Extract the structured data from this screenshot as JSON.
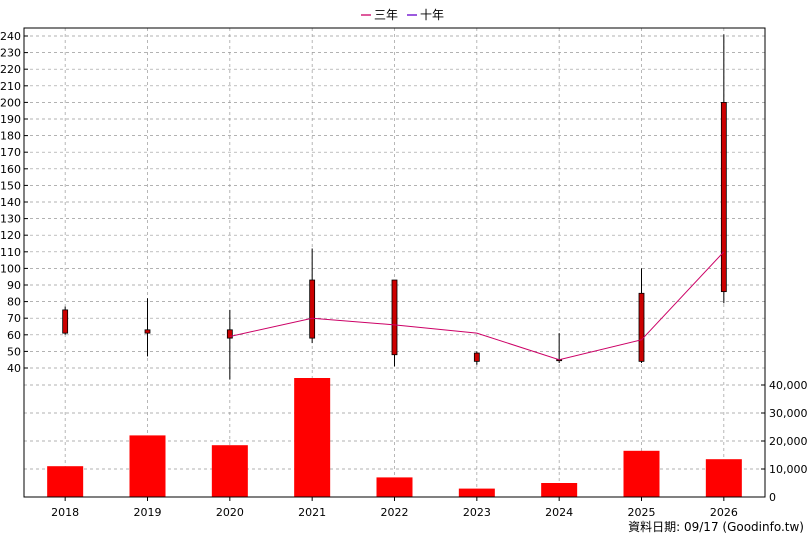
{
  "chart_data": {
    "type": "candlestick+line+bar",
    "categories": [
      "2018",
      "2019",
      "2020",
      "2021",
      "2022",
      "2023",
      "2024",
      "2025",
      "2026"
    ],
    "legend": [
      {
        "name": "三年",
        "color": "#cc0066"
      },
      {
        "name": "十年",
        "color": "#6600cc"
      }
    ],
    "price_axis": {
      "min": 40,
      "max": 240,
      "step": 10
    },
    "volume_axis": {
      "min": 0,
      "max": 40000,
      "step": 10000,
      "labels": [
        "0",
        "10,000",
        "20,000",
        "30,000",
        "40,000"
      ]
    },
    "candles": [
      {
        "year": "2018",
        "open": 61,
        "close": 75,
        "high": 77,
        "low": 60
      },
      {
        "year": "2019",
        "open": 61,
        "close": 63,
        "high": 82,
        "low": 47
      },
      {
        "year": "2020",
        "open": 58,
        "close": 63,
        "high": 75,
        "low": 33
      },
      {
        "year": "2021",
        "open": 58,
        "close": 93,
        "high": 112,
        "low": 55
      },
      {
        "year": "2022",
        "open": 48,
        "close": 93,
        "high": 93,
        "low": 41
      },
      {
        "year": "2023",
        "open": 44,
        "close": 49,
        "high": 50,
        "low": 42
      },
      {
        "year": "2024",
        "open": 45,
        "close": 45,
        "high": 61,
        "low": 43
      },
      {
        "year": "2025",
        "open": 44,
        "close": 85,
        "high": 100,
        "low": 43
      },
      {
        "year": "2026",
        "open": 86,
        "close": 200,
        "high": 241,
        "low": 79
      }
    ],
    "three_year_line": [
      null,
      null,
      59,
      70,
      66,
      61,
      45,
      57,
      110
    ],
    "volume": [
      11000,
      22000,
      18500,
      42500,
      7000,
      3000,
      5000,
      16500,
      13500
    ],
    "up_color": "#cc0000",
    "down_color": "#00cc00",
    "volume_color": "#ff0000"
  },
  "footer": {
    "credit": "資料日期: 09/17  (Goodinfo.tw)"
  }
}
